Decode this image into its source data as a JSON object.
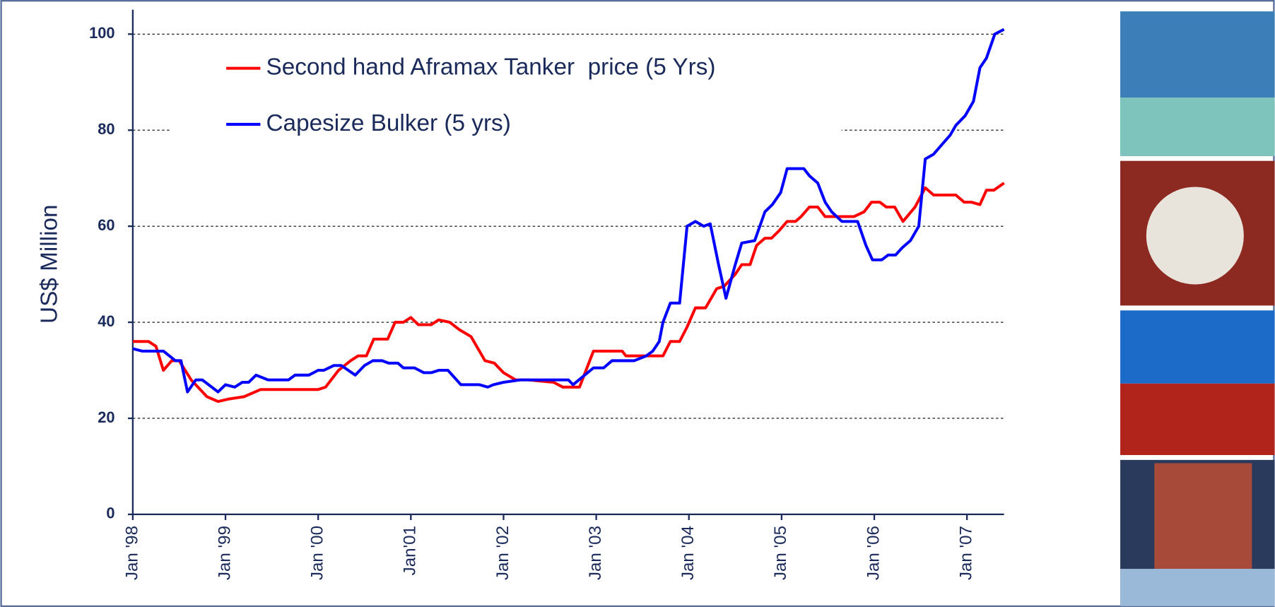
{
  "chart_data": {
    "type": "line",
    "y_label": "US$ Million",
    "ylim": [
      0,
      100
    ],
    "yticks": [
      0,
      20,
      40,
      60,
      80,
      100
    ],
    "grid": true,
    "xlim": [
      1998,
      2007.4
    ],
    "xticks": [
      {
        "value": 1998,
        "label": "Jan '98"
      },
      {
        "value": 1999,
        "label": "Jan '99"
      },
      {
        "value": 2000,
        "label": "Jan '00"
      },
      {
        "value": 2001,
        "label": "Jan'01"
      },
      {
        "value": 2002,
        "label": "Jan '02"
      },
      {
        "value": 2003,
        "label": "Jan '03"
      },
      {
        "value": 2004,
        "label": "Jan '04"
      },
      {
        "value": 2005,
        "label": "Jan '05"
      },
      {
        "value": 2006,
        "label": "Jan '06"
      },
      {
        "value": 2007,
        "label": "Jan '07"
      }
    ],
    "series": [
      {
        "name": "Second hand Aframax Tanker  price (5 Yrs)",
        "color": "#ff0000",
        "x": [
          1998.0,
          1998.17,
          1998.25,
          1998.33,
          1998.42,
          1998.5,
          1998.63,
          1998.8,
          1998.92,
          1999.03,
          1999.2,
          1999.38,
          2000.0,
          2000.08,
          2000.22,
          2000.35,
          2000.43,
          2000.52,
          2000.6,
          2000.75,
          2000.83,
          2000.92,
          2001.0,
          2001.08,
          2001.22,
          2001.3,
          2001.42,
          2001.52,
          2001.65,
          2001.8,
          2001.9,
          2002.0,
          2002.13,
          2002.27,
          2002.54,
          2002.64,
          2002.82,
          2002.97,
          2003.28,
          2003.32,
          2003.5,
          2003.72,
          2003.8,
          2003.9,
          2003.98,
          2004.07,
          2004.18,
          2004.3,
          2004.38,
          2004.5,
          2004.57,
          2004.66,
          2004.73,
          2004.82,
          2004.89,
          2004.97,
          2005.06,
          2005.15,
          2005.21,
          2005.3,
          2005.39,
          2005.47,
          2005.78,
          2005.89,
          2005.97,
          2006.06,
          2006.13,
          2006.22,
          2006.31,
          2006.44,
          2006.55,
          2006.64,
          2006.88,
          2006.97,
          2007.05,
          2007.14,
          2007.21,
          2007.29,
          2007.4
        ],
        "values": [
          36,
          36,
          35,
          30,
          32,
          32,
          28,
          24.5,
          23.5,
          24,
          24.5,
          26,
          26,
          26.5,
          30,
          32,
          33,
          33,
          36.5,
          36.5,
          40,
          40,
          41,
          39.5,
          39.5,
          40.5,
          40,
          38.5,
          37,
          32,
          31.5,
          29.5,
          28,
          28,
          27.5,
          26.5,
          26.5,
          34,
          34,
          33,
          33,
          33,
          36,
          36,
          39,
          43,
          43,
          47,
          47.5,
          50,
          52,
          52,
          56,
          57.5,
          57.5,
          59,
          61,
          61,
          62,
          64,
          64,
          62,
          62,
          63,
          65,
          65,
          64,
          64,
          61,
          64,
          68,
          66.5,
          66.5,
          65,
          65,
          64.5,
          67.5,
          67.5,
          69
        ]
      },
      {
        "name": "Capesize Bulker (5 yrs)",
        "color": "#0000ff",
        "x": [
          1998.0,
          1998.1,
          1998.33,
          1998.46,
          1998.52,
          1998.59,
          1998.68,
          1998.75,
          1998.92,
          1999.0,
          1999.1,
          1999.18,
          1999.25,
          1999.33,
          1999.46,
          1999.68,
          1999.75,
          1999.9,
          2000.0,
          2000.06,
          2000.17,
          2000.25,
          2000.4,
          2000.5,
          2000.59,
          2000.69,
          2000.76,
          2000.86,
          2000.92,
          2001.04,
          2001.14,
          2001.22,
          2001.3,
          2001.4,
          2001.54,
          2001.74,
          2001.83,
          2001.89,
          2002.0,
          2002.18,
          2002.7,
          2002.75,
          2002.97,
          2003.08,
          2003.17,
          2003.41,
          2003.54,
          2003.61,
          2003.68,
          2003.72,
          2003.8,
          2003.9,
          2003.98,
          2004.07,
          2004.16,
          2004.23,
          2004.32,
          2004.4,
          2004.5,
          2004.57,
          2004.71,
          2004.82,
          2004.9,
          2004.99,
          2005.06,
          2005.24,
          2005.3,
          2005.39,
          2005.47,
          2005.54,
          2005.65,
          2005.82,
          2005.91,
          2005.98,
          2006.08,
          2006.15,
          2006.23,
          2006.3,
          2006.39,
          2006.48,
          2006.55,
          2006.64,
          2006.73,
          2006.82,
          2006.88,
          2006.98,
          2007.07,
          2007.14,
          2007.21,
          2007.3,
          2007.4
        ],
        "values": [
          34.5,
          34,
          34,
          32,
          32,
          25.5,
          28,
          28,
          25.5,
          27,
          26.5,
          27.5,
          27.5,
          29,
          28,
          28,
          29,
          29,
          30,
          30,
          31,
          31,
          29,
          31,
          32,
          32,
          31.5,
          31.5,
          30.5,
          30.5,
          29.5,
          29.5,
          30,
          30,
          27,
          27,
          26.5,
          27,
          27.5,
          28,
          28,
          27,
          30.5,
          30.5,
          32,
          32,
          33,
          34,
          36,
          40,
          44,
          44,
          60,
          61,
          60,
          60.5,
          52,
          45,
          52,
          56.5,
          57,
          63,
          64.5,
          67,
          72,
          72,
          70.5,
          69,
          65,
          63,
          61,
          61,
          56,
          53,
          53,
          54,
          54,
          55.5,
          57,
          60,
          74,
          75,
          77,
          79,
          81,
          83,
          86,
          93,
          95,
          100,
          101
        ]
      }
    ]
  }
}
